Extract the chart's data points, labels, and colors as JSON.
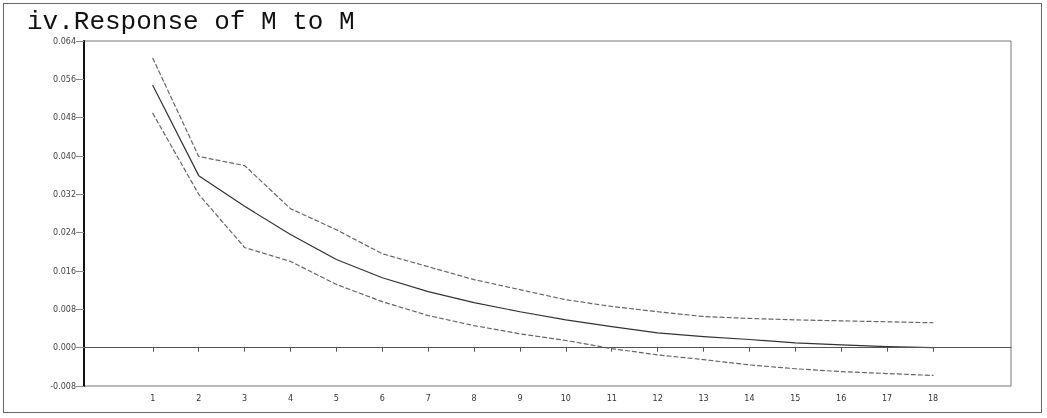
{
  "chart_data": {
    "type": "line",
    "title": "iv.Response of M to M",
    "x": [
      1,
      2,
      3,
      4,
      5,
      6,
      7,
      8,
      9,
      10,
      11,
      12,
      13,
      14,
      15,
      16,
      17,
      18
    ],
    "xlim": [
      -0.5,
      19.7
    ],
    "xticks": [
      1,
      2,
      3,
      4,
      5,
      6,
      7,
      8,
      9,
      10,
      11,
      12,
      13,
      14,
      15,
      16,
      17,
      18
    ],
    "ylim": [
      -0.008,
      0.064
    ],
    "yticks": [
      -0.008,
      {
        "value": 0,
        "label": "0.000"
      },
      0.008,
      0.016,
      0.024,
      0.032,
      {
        "value": 0.04,
        "label": "0.040"
      },
      0.048,
      0.056,
      0.064
    ],
    "series": [
      {
        "color": "#333333",
        "line_style": "solid",
        "values": [
          0.0547,
          0.0359,
          0.0295,
          0.0236,
          0.0184,
          0.0146,
          0.0117,
          0.0094,
          0.0075,
          0.0058,
          0.0044,
          0.0031,
          0.0023,
          0.0017,
          0.001,
          0.0006,
          0.0002,
          0.0
        ]
      },
      {
        "color": "#666666",
        "line_style": "dashed",
        "values": [
          0.0604,
          0.0399,
          0.038,
          0.029,
          0.0246,
          0.0196,
          0.0169,
          0.0142,
          0.0121,
          0.01,
          0.0086,
          0.0075,
          0.0065,
          0.0061,
          0.0058,
          0.0056,
          0.0054,
          0.0052
        ]
      },
      {
        "color": "#666666",
        "line_style": "dashed",
        "values": [
          0.0489,
          0.032,
          0.0209,
          0.018,
          0.0132,
          0.0096,
          0.0067,
          0.0046,
          0.0029,
          0.0015,
          -0.0002,
          -0.0015,
          -0.0025,
          -0.0036,
          -0.0044,
          -0.005,
          -0.0054,
          -0.0058
        ]
      }
    ],
    "ref_lines": [
      {
        "axis": "y",
        "value": 0,
        "color": "#555555",
        "line_style": "solid"
      }
    ],
    "grid": false,
    "marker": "none"
  }
}
